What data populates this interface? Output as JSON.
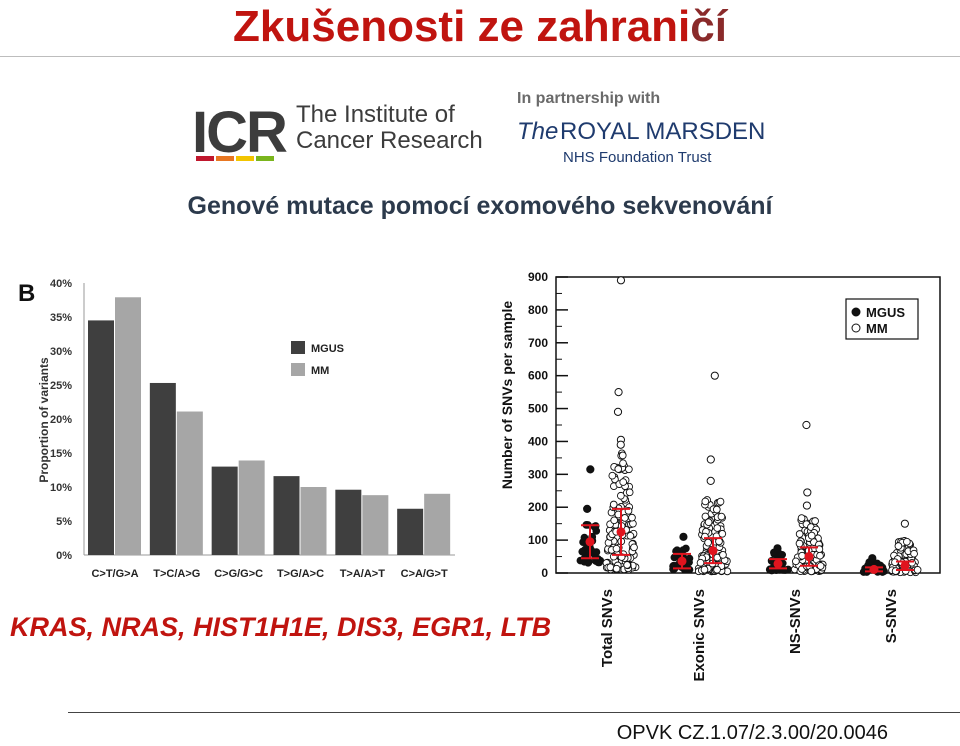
{
  "slide": {
    "title_main": "Zkušenosti ze zahrani",
    "title_accent": "čí",
    "subtitle": "Genové mutace pomocí exomového sekvenování",
    "genes": "KRAS, NRAS, HIST1H1E, DIS3, EGR1, LTB",
    "footer": "OPVK CZ.1.07/2.3.00/20.0046",
    "colors": {
      "title": "#c0140f",
      "title_accent": "#8a2a2a",
      "subtitle": "#2c3a4c",
      "mgus": "#3f3f3f",
      "mm": "#a6a6a6",
      "mean_bar": "#e0141e"
    }
  },
  "logos": {
    "icr_mark": "ICR",
    "icr_name_line1": "The Institute of",
    "icr_name_line2": "Cancer Research",
    "partnership": "In partnership with",
    "rm_name_italic": "The",
    "rm_name": "ROYAL MARSDEN",
    "rm_trust": "NHS Foundation Trust"
  },
  "chart_data": [
    {
      "type": "bar",
      "panel_label": "B",
      "ylabel": "Proportion of variants",
      "ytick_labels": [
        "0%",
        "5%",
        "10%",
        "15%",
        "20%",
        "25%",
        "30%",
        "35%",
        "40%"
      ],
      "ylim": [
        0,
        40
      ],
      "categories": [
        "C>T/G>A",
        "T>C/A>G",
        "C>G/G>C",
        "T>G/A>C",
        "T>A/A>T",
        "C>A/G>T"
      ],
      "series": [
        {
          "name": "MGUS",
          "values": [
            34.5,
            25.3,
            13.0,
            11.6,
            9.6,
            6.8
          ]
        },
        {
          "name": "MM",
          "values": [
            37.9,
            21.1,
            13.9,
            10.0,
            8.8,
            9.0
          ]
        }
      ],
      "legend": "center-right",
      "grid": false
    },
    {
      "type": "scatter",
      "ylabel": "Number of SNVs per sample",
      "ytick_labels": [
        "0",
        "100",
        "200",
        "300",
        "400",
        "500",
        "600",
        "700",
        "800",
        "900"
      ],
      "ylim": [
        0,
        900
      ],
      "categories": [
        "Total SNVs",
        "Exonic SNVs",
        "NS-SNVs",
        "S-SNVs"
      ],
      "legend": "top-right",
      "legend_entries": [
        "MGUS",
        "MM"
      ],
      "series": [
        {
          "name": "MGUS",
          "marker": "filled",
          "mean": [
            95,
            36,
            28,
            11
          ],
          "sd": [
            50,
            22,
            14,
            6
          ],
          "outliers": [
            [
              315,
              195
            ],
            [
              110
            ],
            [
              75
            ],
            [
              45
            ]
          ],
          "spread": [
            [
              30,
              155
            ],
            [
              10,
              75
            ],
            [
              8,
              70
            ],
            [
              3,
              35
            ]
          ],
          "n": [
            40,
            28,
            26,
            22
          ]
        },
        {
          "name": "MM",
          "marker": "open",
          "mean": [
            125,
            68,
            50,
            22
          ],
          "sd": [
            70,
            38,
            28,
            13
          ],
          "outliers": [
            [
              890,
              550,
              490,
              405,
              390
            ],
            [
              600,
              345,
              280
            ],
            [
              450,
              245,
              205
            ],
            [
              150
            ]
          ],
          "spread": [
            [
              10,
              380
            ],
            [
              5,
              225
            ],
            [
              5,
              170
            ],
            [
              2,
              100
            ]
          ],
          "n": [
            120,
            105,
            95,
            75
          ]
        }
      ]
    }
  ]
}
